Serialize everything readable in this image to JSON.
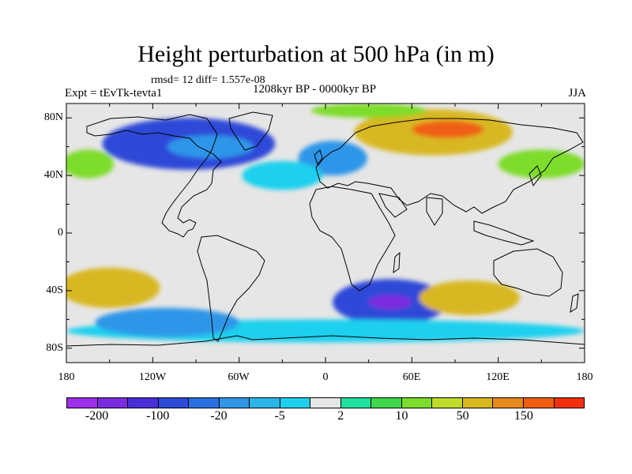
{
  "title": "Height perturbation at 500 hPa (in m)",
  "stats": "rmsd= 12 diff= 1.557e-08",
  "experiment": "Expt = tEvTk-tevta1",
  "period": "1208kyr BP - 0000kyr BP",
  "season": "JJA",
  "lat_labels": [
    "80N",
    "40N",
    "0",
    "40S",
    "80S"
  ],
  "lon_labels": [
    "180",
    "120W",
    "60W",
    "0",
    "60E",
    "120E",
    "180"
  ],
  "colorbar": {
    "colors": [
      "#9b30e8",
      "#7b2ce0",
      "#4a2ed8",
      "#2d4ad8",
      "#2a6fe0",
      "#2f96e8",
      "#2bb6ea",
      "#1fd0ee",
      "#e6e6e6",
      "#1fe09e",
      "#3fd84a",
      "#7edc2c",
      "#c0dc2a",
      "#d8b820",
      "#e88a1c",
      "#ef5e14",
      "#f2300f"
    ],
    "labels": [
      "-200",
      "-100",
      "-20",
      "-5",
      "2",
      "10",
      "50",
      "150"
    ]
  },
  "map": {
    "lon_range": [
      -180,
      180
    ],
    "lat_range": [
      -90,
      90
    ],
    "projection": "cylindrical-equidistant",
    "background_color": "#e6e6e6",
    "field_blobs": [
      {
        "name": "north-america-arctic-low",
        "lon": -95,
        "lat": 62,
        "rx": 60,
        "ry": 18,
        "level": -100
      },
      {
        "name": "north-america-low-core",
        "lon": -80,
        "lat": 60,
        "rx": 30,
        "ry": 8,
        "level": -20
      },
      {
        "name": "europe-low",
        "lon": 5,
        "lat": 52,
        "rx": 24,
        "ry": 12,
        "level": -20
      },
      {
        "name": "siberia-high",
        "lon": 75,
        "lat": 70,
        "rx": 55,
        "ry": 16,
        "level": 50
      },
      {
        "name": "siberia-high-core",
        "lon": 85,
        "lat": 72,
        "rx": 25,
        "ry": 6,
        "level": 150
      },
      {
        "name": "pacific-north-high",
        "lon": -165,
        "lat": 48,
        "rx": 18,
        "ry": 10,
        "level": 10
      },
      {
        "name": "east-asia-high",
        "lon": 150,
        "lat": 48,
        "rx": 30,
        "ry": 10,
        "level": 10
      },
      {
        "name": "south-pacific-high",
        "lon": -150,
        "lat": -38,
        "rx": 35,
        "ry": 14,
        "level": 50
      },
      {
        "name": "south-atlantic-low",
        "lon": 45,
        "lat": -48,
        "rx": 40,
        "ry": 16,
        "level": -100
      },
      {
        "name": "south-atlantic-low-core",
        "lon": 45,
        "lat": -48,
        "rx": 15,
        "ry": 5,
        "level": -200
      },
      {
        "name": "south-indian-high",
        "lon": 100,
        "lat": -45,
        "rx": 35,
        "ry": 12,
        "level": 50
      },
      {
        "name": "southern-ocean-band",
        "lon": 0,
        "lat": -68,
        "rx": 180,
        "ry": 8,
        "level": -5
      },
      {
        "name": "south-pacific-low-band",
        "lon": -110,
        "lat": -62,
        "rx": 50,
        "ry": 10,
        "level": -20
      },
      {
        "name": "north-atlantic-low",
        "lon": -30,
        "lat": 40,
        "rx": 28,
        "ry": 10,
        "level": -5
      },
      {
        "name": "arctic-high",
        "lon": 30,
        "lat": 85,
        "rx": 40,
        "ry": 5,
        "level": 10
      }
    ]
  }
}
